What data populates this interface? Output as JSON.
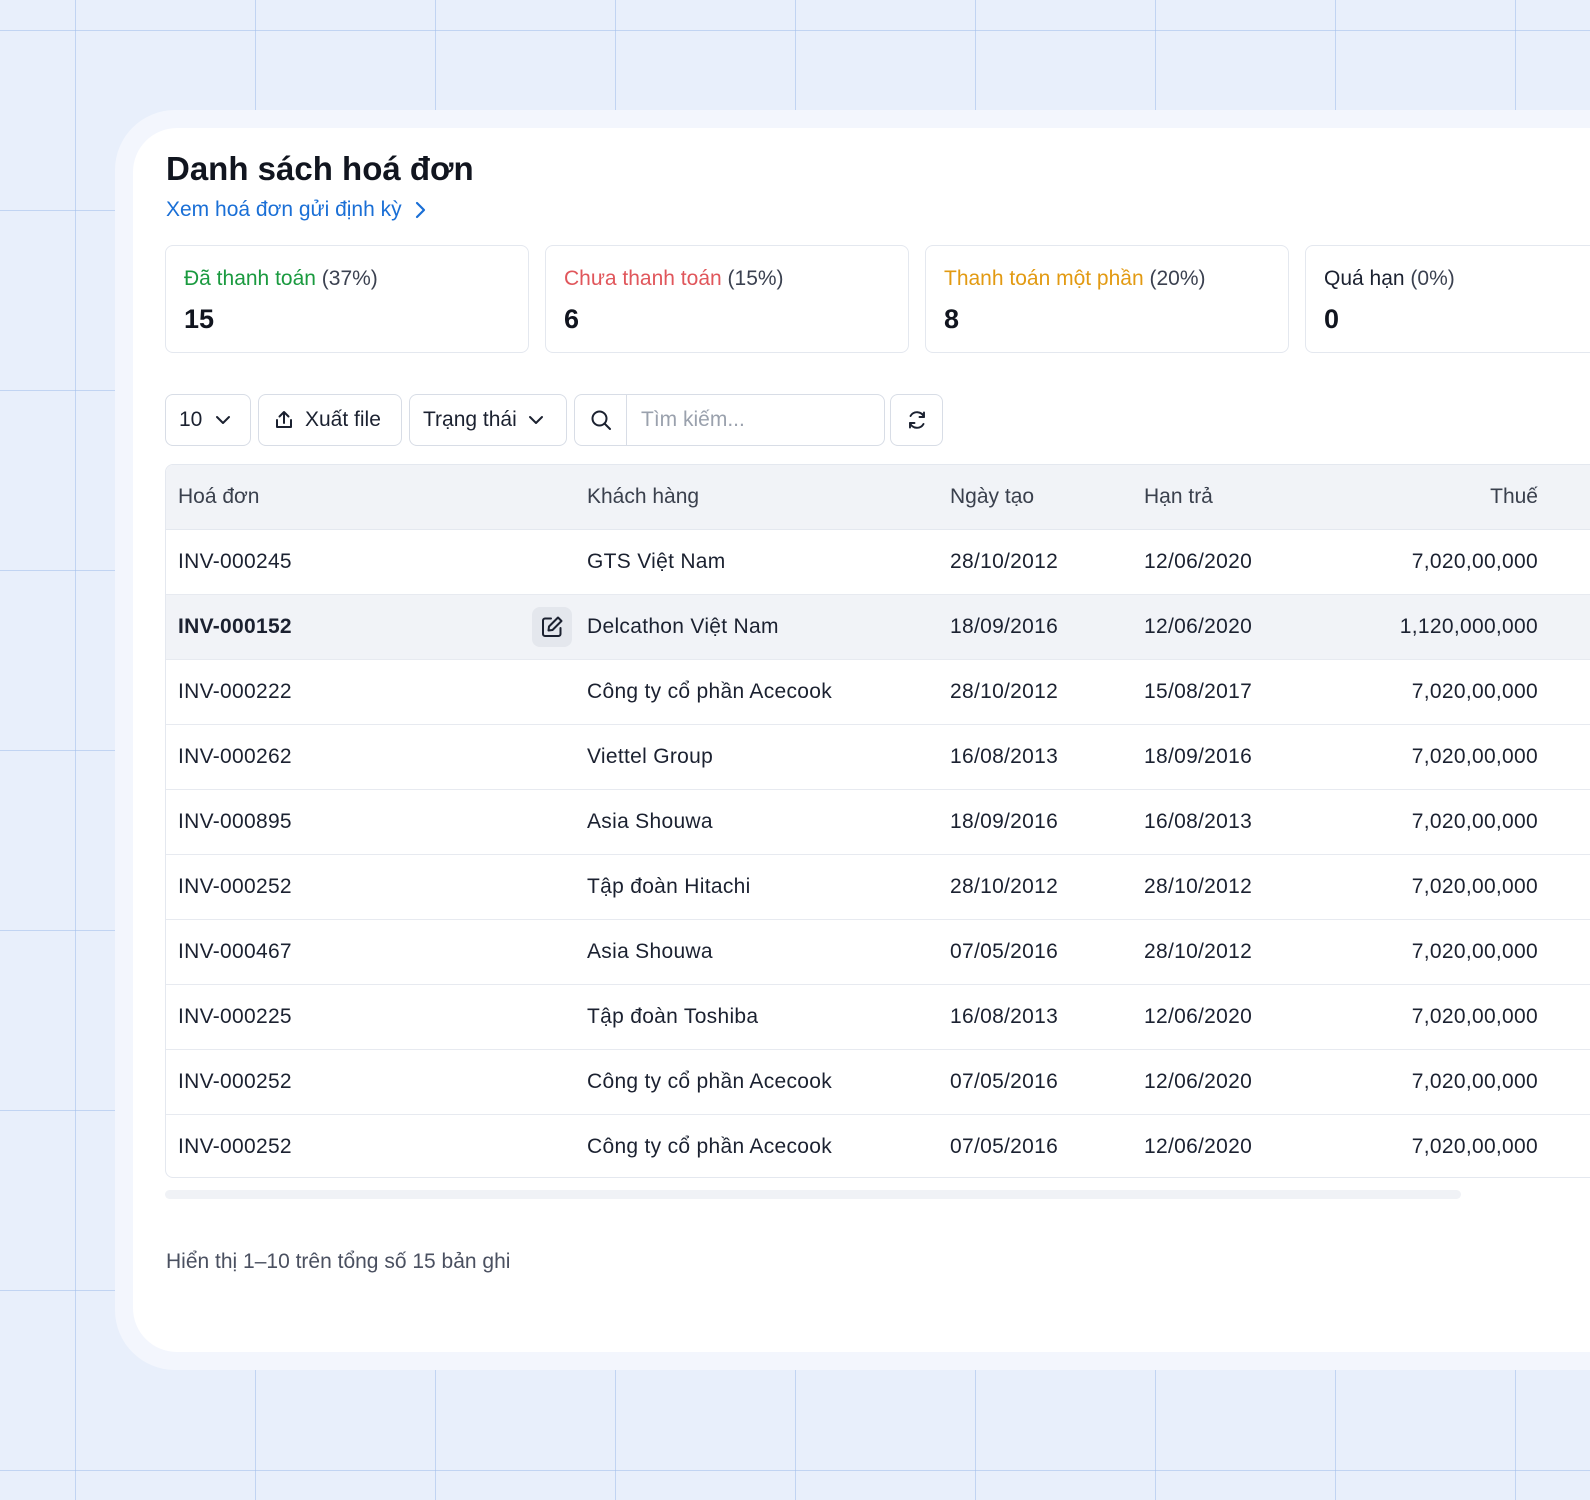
{
  "page": {
    "title": "Danh sách hoá đơn",
    "recurring_link": "Xem hoá đơn gửi định kỳ"
  },
  "stats": [
    {
      "label": "Đã thanh toán",
      "percent": "(37%)",
      "value": "15",
      "color": "#1a9a3f"
    },
    {
      "label": "Chưa thanh toán",
      "percent": "(15%)",
      "value": "6",
      "color": "#e0565b"
    },
    {
      "label": "Thanh toán một phần",
      "percent": "(20%)",
      "value": "8",
      "color": "#e29a12"
    },
    {
      "label": "Quá hạn",
      "percent": "(0%)",
      "value": "0",
      "color": "#1b2130"
    }
  ],
  "toolbar": {
    "page_size": "10",
    "export_label": "Xuất file",
    "status_filter": "Trạng thái",
    "search_placeholder": "Tìm kiếm..."
  },
  "table": {
    "headers": [
      "Hoá đơn",
      "Khách hàng",
      "Ngày tạo",
      "Hạn trả",
      "Thuế"
    ],
    "rows": [
      {
        "invoice": "INV-000245",
        "customer": "GTS Việt Nam",
        "created": "28/10/2012",
        "due": "12/06/2020",
        "tax": "7,020,00,000"
      },
      {
        "invoice": "INV-000152",
        "customer": "Delcathon Việt Nam",
        "created": "18/09/2016",
        "due": "12/06/2020",
        "tax": "1,120,000,000"
      },
      {
        "invoice": "INV-000222",
        "customer": "Công ty cổ phần Acecook",
        "created": "28/10/2012",
        "due": "15/08/2017",
        "tax": "7,020,00,000"
      },
      {
        "invoice": "INV-000262",
        "customer": "Viettel Group",
        "created": "16/08/2013",
        "due": "18/09/2016",
        "tax": "7,020,00,000"
      },
      {
        "invoice": "INV-000895",
        "customer": "Asia Shouwa",
        "created": "18/09/2016",
        "due": "16/08/2013",
        "tax": "7,020,00,000"
      },
      {
        "invoice": "INV-000252",
        "customer": "Tập đoàn Hitachi",
        "created": "28/10/2012",
        "due": "28/10/2012",
        "tax": "7,020,00,000"
      },
      {
        "invoice": "INV-000467",
        "customer": "Asia Shouwa",
        "created": "07/05/2016",
        "due": "28/10/2012",
        "tax": "7,020,00,000"
      },
      {
        "invoice": "INV-000225",
        "customer": "Tập đoàn Toshiba",
        "created": "16/08/2013",
        "due": "12/06/2020",
        "tax": "7,020,00,000"
      },
      {
        "invoice": "INV-000252",
        "customer": "Công ty cổ phần Acecook",
        "created": "07/05/2016",
        "due": "12/06/2020",
        "tax": "7,020,00,000"
      },
      {
        "invoice": "INV-000252",
        "customer": "Công ty cổ phần Acecook",
        "created": "07/05/2016",
        "due": "12/06/2020",
        "tax": "7,020,00,000"
      }
    ]
  },
  "footer": {
    "summary": "Hiển thị 1–10 trên tổng số 15 bản ghi"
  },
  "icons": {
    "recurring_link": "chevron-right-icon",
    "page_size": "chevron-down-icon",
    "export": "upload-icon",
    "status_filter": "chevron-down-icon",
    "search": "search-icon",
    "refresh": "refresh-icon",
    "row_action": "edit-icon"
  }
}
